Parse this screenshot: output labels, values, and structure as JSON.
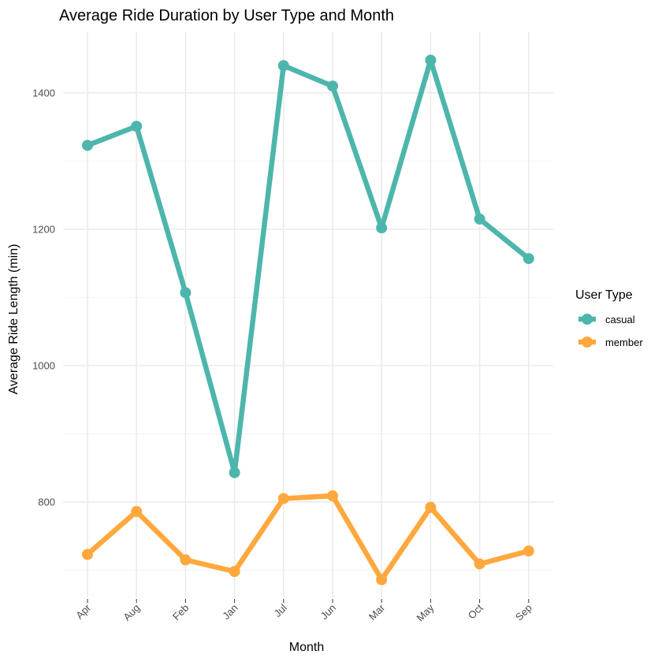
{
  "chart_data": {
    "type": "line",
    "title": "Average Ride Duration by User Type and Month",
    "xlabel": "Month",
    "ylabel": "Average Ride Length (min)",
    "categories": [
      "Apr",
      "Aug",
      "Feb",
      "Jan",
      "Jul",
      "Jun",
      "Mar",
      "May",
      "Oct",
      "Sep"
    ],
    "y_ticks": [
      800,
      1000,
      1200,
      1400
    ],
    "ylim": [
      660,
      1490
    ],
    "grid": true,
    "legend": {
      "title": "User Type",
      "position": "right"
    },
    "series": [
      {
        "name": "casual",
        "color": "#4DB6AC",
        "values": [
          1323,
          1351,
          1107,
          843,
          1440,
          1410,
          1202,
          1448,
          1215,
          1157
        ]
      },
      {
        "name": "member",
        "color": "#FFA83E",
        "values": [
          723,
          786,
          715,
          698,
          805,
          809,
          686,
          792,
          709,
          728
        ]
      }
    ]
  }
}
